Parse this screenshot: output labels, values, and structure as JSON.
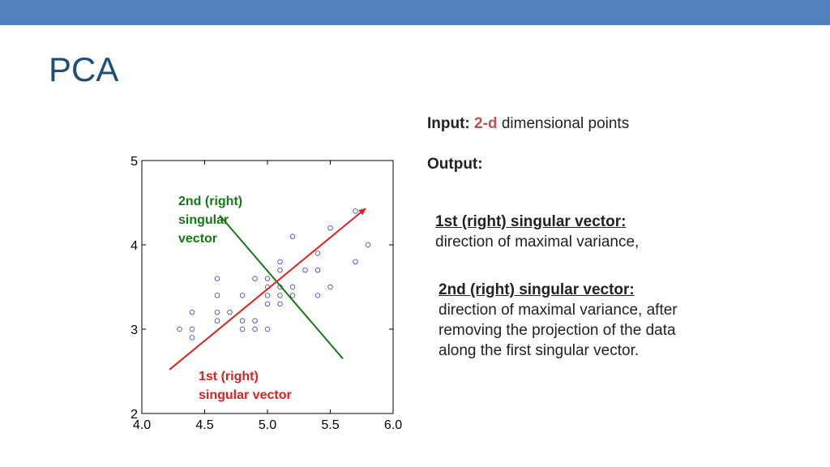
{
  "colors": {
    "top_bar": "#4f81bd",
    "title": "#1f4e79",
    "accent_red": "#c0504d",
    "vector1": "#e0201d",
    "vector2": "#137a13",
    "points": "#3a3ad0"
  },
  "slide": {
    "title": "PCA"
  },
  "input_line": {
    "label": "Input:",
    "highlight": "2-d",
    "rest": " dimensional points"
  },
  "output_line": {
    "label": "Output:"
  },
  "first_vector": {
    "header": "1st (right) singular vector:",
    "body": "direction of maximal variance,"
  },
  "second_vector": {
    "header": "2nd (right) singular vector:",
    "body": "direction of maximal variance, after removing the projection of the data along the first singular vector."
  },
  "chart_data": {
    "type": "scatter",
    "title": "",
    "xlabel": "",
    "ylabel": "",
    "xlim": [
      4.0,
      6.0
    ],
    "ylim": [
      2,
      5
    ],
    "x_ticks": [
      "4.0",
      "4.5",
      "5.0",
      "5.5",
      "6.0"
    ],
    "y_ticks": [
      "2",
      "3",
      "4",
      "5"
    ],
    "grid": false,
    "points": [
      [
        4.3,
        3.0
      ],
      [
        4.4,
        3.0
      ],
      [
        4.4,
        2.9
      ],
      [
        4.4,
        3.2
      ],
      [
        4.6,
        3.1
      ],
      [
        4.6,
        3.2
      ],
      [
        4.6,
        3.4
      ],
      [
        4.6,
        3.6
      ],
      [
        4.7,
        3.2
      ],
      [
        4.8,
        3.0
      ],
      [
        4.8,
        3.1
      ],
      [
        4.8,
        3.4
      ],
      [
        4.9,
        3.0
      ],
      [
        4.9,
        3.1
      ],
      [
        4.9,
        3.6
      ],
      [
        5.0,
        3.0
      ],
      [
        5.0,
        3.3
      ],
      [
        5.0,
        3.4
      ],
      [
        5.0,
        3.5
      ],
      [
        5.0,
        3.6
      ],
      [
        5.1,
        3.3
      ],
      [
        5.1,
        3.4
      ],
      [
        5.1,
        3.5
      ],
      [
        5.1,
        3.7
      ],
      [
        5.1,
        3.8
      ],
      [
        5.2,
        3.4
      ],
      [
        5.2,
        3.5
      ],
      [
        5.2,
        4.1
      ],
      [
        5.3,
        3.7
      ],
      [
        5.4,
        3.4
      ],
      [
        5.4,
        3.7
      ],
      [
        5.4,
        3.9
      ],
      [
        5.5,
        3.5
      ],
      [
        5.5,
        4.2
      ],
      [
        5.7,
        3.8
      ],
      [
        5.7,
        4.4
      ],
      [
        5.8,
        4.0
      ]
    ],
    "vectors": [
      {
        "label_line1": "1st (right)",
        "label_line2": "singular vector",
        "from": [
          4.22,
          2.52
        ],
        "to": [
          5.78,
          4.43
        ],
        "arrow": true
      },
      {
        "label_line1": "2nd (right)",
        "label_line2": "singular",
        "label_line3": "vector",
        "from": [
          4.62,
          4.35
        ],
        "to": [
          5.6,
          2.65
        ],
        "arrow": false
      }
    ]
  }
}
